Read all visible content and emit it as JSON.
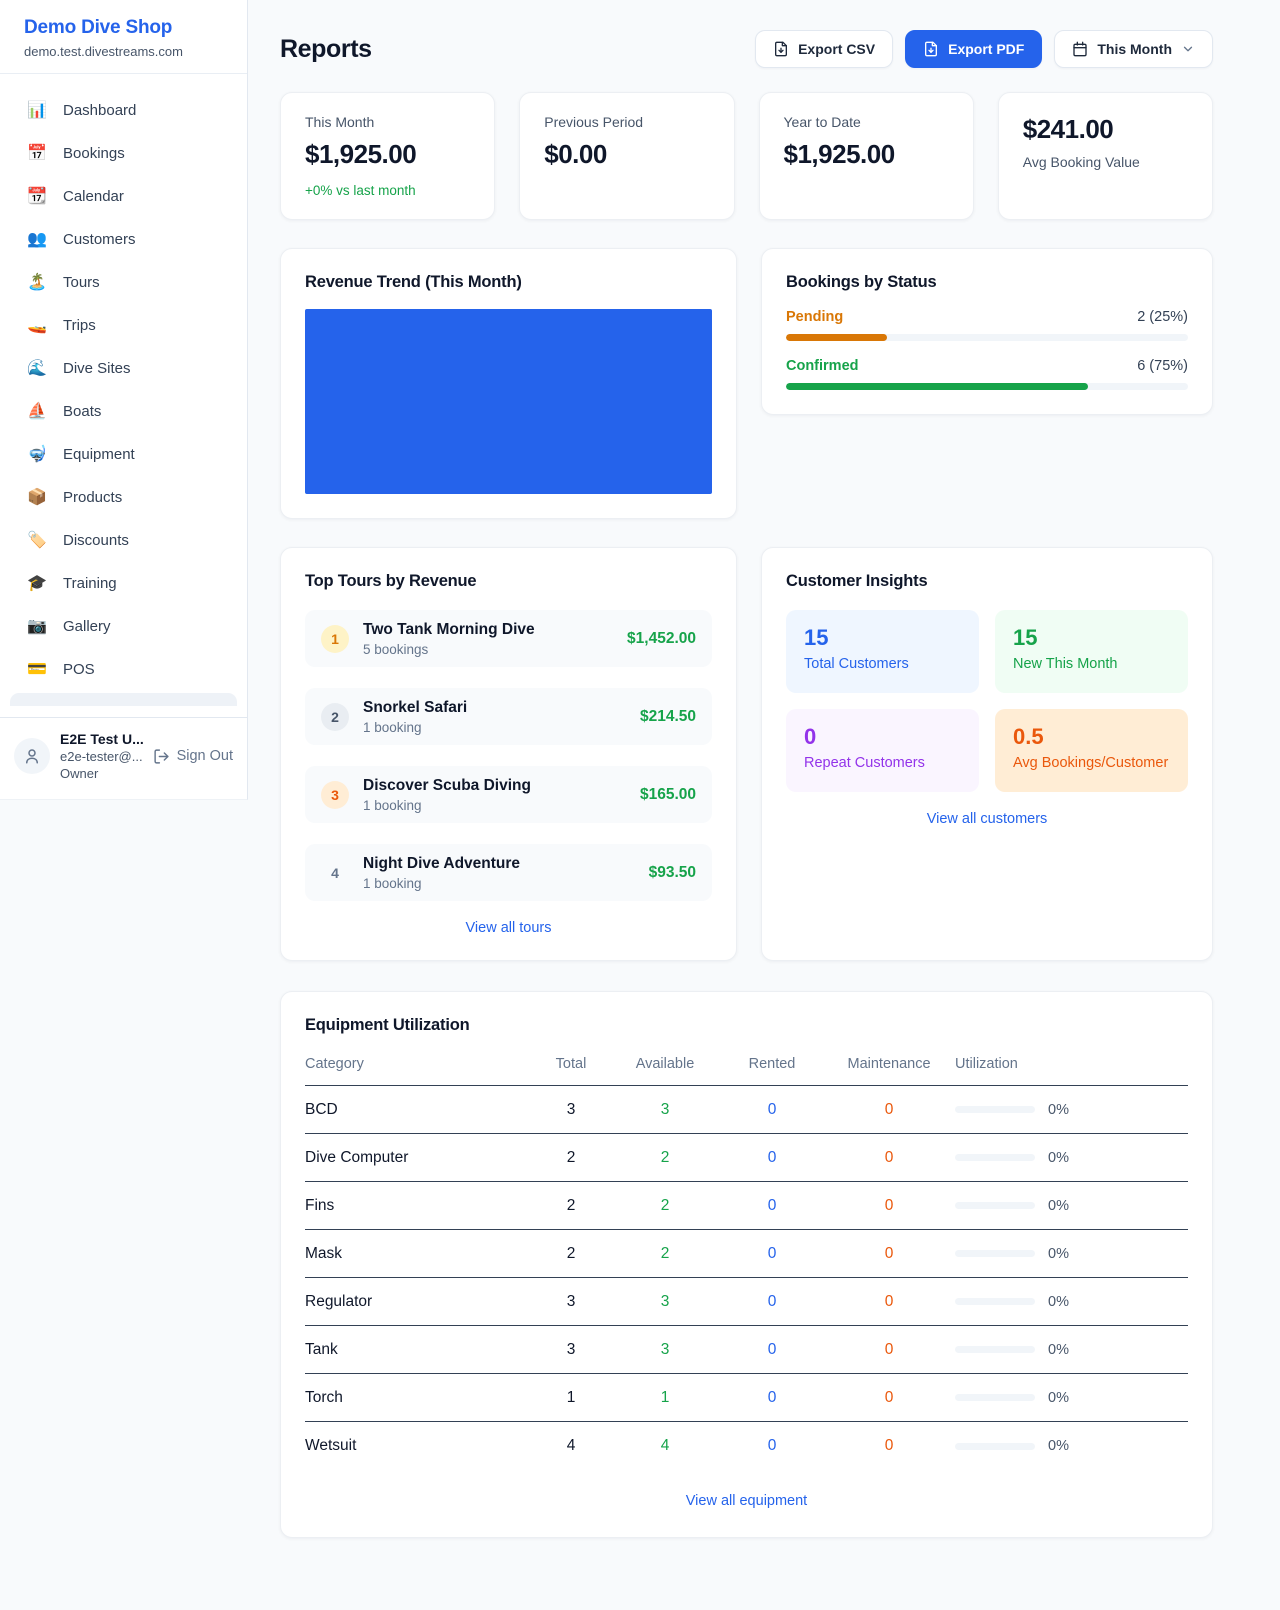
{
  "sidebar": {
    "brand": "Demo Dive Shop",
    "domain": "demo.test.divestreams.com",
    "items": [
      {
        "icon": "📊",
        "label": "Dashboard"
      },
      {
        "icon": "📅",
        "label": "Bookings"
      },
      {
        "icon": "📆",
        "label": "Calendar"
      },
      {
        "icon": "👥",
        "label": "Customers"
      },
      {
        "icon": "🏝️",
        "label": "Tours"
      },
      {
        "icon": "🚤",
        "label": "Trips"
      },
      {
        "icon": "🌊",
        "label": "Dive Sites"
      },
      {
        "icon": "⛵",
        "label": "Boats"
      },
      {
        "icon": "🤿",
        "label": "Equipment"
      },
      {
        "icon": "📦",
        "label": "Products"
      },
      {
        "icon": "🏷️",
        "label": "Discounts"
      },
      {
        "icon": "🎓",
        "label": "Training"
      },
      {
        "icon": "📷",
        "label": "Gallery"
      },
      {
        "icon": "💳",
        "label": "POS"
      }
    ],
    "user": {
      "name": "E2E Test U...",
      "email": "e2e-tester@...",
      "role": "Owner",
      "signout_label": "Sign Out"
    }
  },
  "header": {
    "title": "Reports",
    "export_csv_label": "Export CSV",
    "export_pdf_label": "Export PDF",
    "period_label": "This Month"
  },
  "stats": [
    {
      "label": "This Month",
      "value": "$1,925.00",
      "sub": "+0% vs last month"
    },
    {
      "label": "Previous Period",
      "value": "$0.00"
    },
    {
      "label": "Year to Date",
      "value": "$1,925.00"
    },
    {
      "label": "Avg Booking Value",
      "value": "$241.00"
    }
  ],
  "revenue_trend": {
    "title": "Revenue Trend (This Month)"
  },
  "chart_data": {
    "type": "bar",
    "title": "Revenue Trend (This Month)",
    "categories": [
      "This Month"
    ],
    "values": [
      1925.0
    ],
    "bar_color": "#2563eb",
    "xlabel": "",
    "ylabel": "",
    "note": "single solid bar fills the entire plot area; no axes, ticks or gridlines visible"
  },
  "bookings_by_status": {
    "title": "Bookings by Status",
    "rows": [
      {
        "label": "Pending",
        "count": "2 (25%)",
        "pct": 25,
        "color": "#d97706"
      },
      {
        "label": "Confirmed",
        "count": "6 (75%)",
        "pct": 75,
        "color": "#16a34a"
      }
    ]
  },
  "top_tours": {
    "title": "Top Tours by Revenue",
    "items": [
      {
        "rank": "1",
        "name": "Two Tank Morning Dive",
        "bookings": "5 bookings",
        "revenue": "$1,452.00"
      },
      {
        "rank": "2",
        "name": "Snorkel Safari",
        "bookings": "1 booking",
        "revenue": "$214.50"
      },
      {
        "rank": "3",
        "name": "Discover Scuba Diving",
        "bookings": "1 booking",
        "revenue": "$165.00"
      },
      {
        "rank": "4",
        "name": "Night Dive Adventure",
        "bookings": "1 booking",
        "revenue": "$93.50"
      }
    ],
    "link": "View all tours"
  },
  "customer_insights": {
    "title": "Customer Insights",
    "tiles": [
      {
        "value": "15",
        "label": "Total Customers",
        "color": "#2563eb",
        "bg": "#eff6ff"
      },
      {
        "value": "15",
        "label": "New This Month",
        "color": "#16a34a",
        "bg": "#f0fdf4"
      },
      {
        "value": "0",
        "label": "Repeat Customers",
        "color": "#9333ea",
        "bg": "#faf5ff"
      },
      {
        "value": "0.5",
        "label": "Avg Bookings/Customer",
        "color": "#ea580c",
        "bg": "#ffedd5"
      }
    ],
    "link": "View all customers"
  },
  "equipment": {
    "title": "Equipment Utilization",
    "columns": [
      "Category",
      "Total",
      "Available",
      "Rented",
      "Maintenance",
      "Utilization"
    ],
    "rows": [
      {
        "category": "BCD",
        "total": "3",
        "available": "3",
        "rented": "0",
        "maintenance": "0",
        "utilization": "0%"
      },
      {
        "category": "Dive Computer",
        "total": "2",
        "available": "2",
        "rented": "0",
        "maintenance": "0",
        "utilization": "0%"
      },
      {
        "category": "Fins",
        "total": "2",
        "available": "2",
        "rented": "0",
        "maintenance": "0",
        "utilization": "0%"
      },
      {
        "category": "Mask",
        "total": "2",
        "available": "2",
        "rented": "0",
        "maintenance": "0",
        "utilization": "0%"
      },
      {
        "category": "Regulator",
        "total": "3",
        "available": "3",
        "rented": "0",
        "maintenance": "0",
        "utilization": "0%"
      },
      {
        "category": "Tank",
        "total": "3",
        "available": "3",
        "rented": "0",
        "maintenance": "0",
        "utilization": "0%"
      },
      {
        "category": "Torch",
        "total": "1",
        "available": "1",
        "rented": "0",
        "maintenance": "0",
        "utilization": "0%"
      },
      {
        "category": "Wetsuit",
        "total": "4",
        "available": "4",
        "rented": "0",
        "maintenance": "0",
        "utilization": "0%"
      }
    ],
    "link": "View all equipment"
  },
  "colors": {
    "accent": "#2563eb",
    "green": "#16a34a",
    "amber": "#d97706",
    "orange": "#ea580c",
    "purple": "#9333ea",
    "page_bg": "#f8fafc"
  }
}
